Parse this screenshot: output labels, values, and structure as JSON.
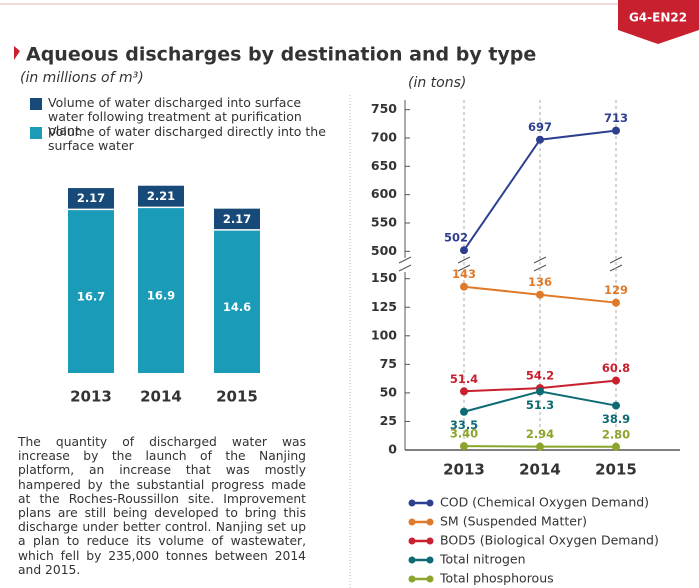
{
  "badge": "G4-EN22",
  "title": "Aqueous discharges by destination and by type",
  "note": "The quantity of discharged water was increase by the launch of the Nanjing platform, an increase that was mostly hampered by the substantial progress made at the Roches-Roussillon site. Improvement plans are still being developed to bring this discharge under better control. Nanjing set up a plan to reduce its volume of wastewater, which fell by 235,000 tonnes between 2014 and 2015.",
  "chart_data": [
    {
      "type": "stacked_bar",
      "subtitle": "(in millions of m³)",
      "categories": [
        "2013",
        "2014",
        "2015"
      ],
      "series": [
        {
          "name": "Volume of water discharged into surface water following treatment at purification plant",
          "color": "#174a78",
          "values": [
            2.17,
            2.21,
            2.17
          ]
        },
        {
          "name": "Volume of water discharged directly into the surface water",
          "color": "#1a9bb8",
          "values": [
            16.7,
            16.9,
            14.6
          ]
        }
      ]
    },
    {
      "type": "line",
      "subtitle": "(in tons)",
      "categories": [
        "2013",
        "2014",
        "2015"
      ],
      "ylim": [
        0,
        155
      ],
      "yticks": [
        0,
        25,
        50,
        75,
        100,
        125,
        150
      ],
      "y2lim": [
        490,
        760
      ],
      "y2ticks": [
        500,
        550,
        600,
        650,
        700,
        750
      ],
      "series": [
        {
          "name": "COD (Chemical Oxygen Demand)",
          "color": "#2e3f8f",
          "axis": "y2",
          "values": [
            502,
            697,
            713
          ]
        },
        {
          "name": "SM (Suspended Matter)",
          "color": "#e07a2b",
          "values": [
            143,
            136,
            129
          ]
        },
        {
          "name": "BOD5 (Biological Oxygen Demand)",
          "color": "#c8202f",
          "values": [
            51.4,
            54.2,
            60.8
          ]
        },
        {
          "name": "Total nitrogen",
          "color": "#0e6b73",
          "values": [
            33.5,
            51.3,
            38.9
          ]
        },
        {
          "name": "Total phosphorous",
          "color": "#8aa52a",
          "values": [
            3.4,
            2.94,
            2.8
          ],
          "value_labels": [
            "3.40",
            "2.94",
            "2.80"
          ]
        }
      ]
    }
  ]
}
